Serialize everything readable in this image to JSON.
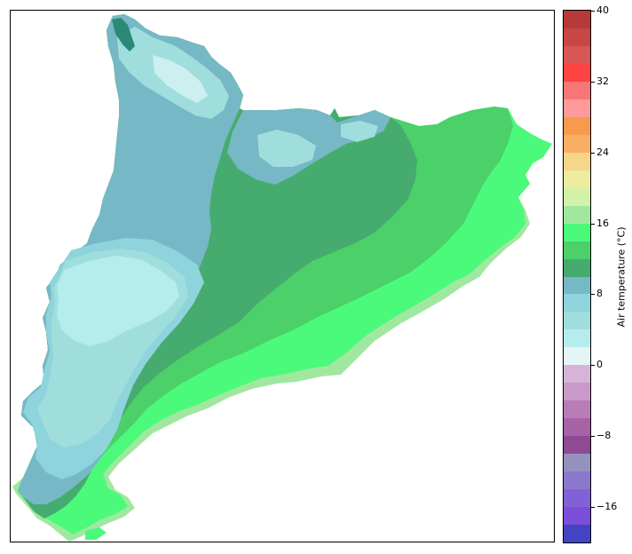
{
  "colorbar": {
    "label": "Air temperature (°C)",
    "min": -20,
    "max": 40,
    "step": 2,
    "ticks": [
      "40",
      "32",
      "24",
      "16",
      "8",
      "0",
      "−8",
      "−16"
    ],
    "tick_values": [
      40,
      32,
      24,
      16,
      8,
      0,
      -8,
      -16
    ],
    "colors_bottom_to_top": [
      "#4343c4",
      "#7a4ed8",
      "#8261d6",
      "#8a78cc",
      "#9591bd",
      "#8e4a93",
      "#a763a6",
      "#b87db6",
      "#c99ac9",
      "#d7b3da",
      "#e4f5f5",
      "#b5ecee",
      "#9fdedd",
      "#8fd3dc",
      "#76b8c5",
      "#46ab6f",
      "#4bd06a",
      "#4bfa7a",
      "#a0e8a0",
      "#d3f2a8",
      "#eeec9f",
      "#f5d68b",
      "#f7ae64",
      "#f79a4e",
      "#ff9a9a",
      "#f77676",
      "#ff4343",
      "#d85656",
      "#c94646",
      "#b63a3a"
    ]
  },
  "map": {
    "region": "Catalonia",
    "fill_colors": {
      "coast_strip": "#a0e8a0",
      "lowland": "#4bfa7a",
      "midland": "#4bd06a",
      "upland": "#46ab6f",
      "cold_plain_high": "#76b8c5",
      "cold_plain_mid": "#8fd3dc",
      "cold_plain_low": "#9fdedd",
      "cold_core": "#b5ecee",
      "pyrenees_peaks": "#d7f3f3",
      "river_teal": "#2a8a76"
    }
  }
}
